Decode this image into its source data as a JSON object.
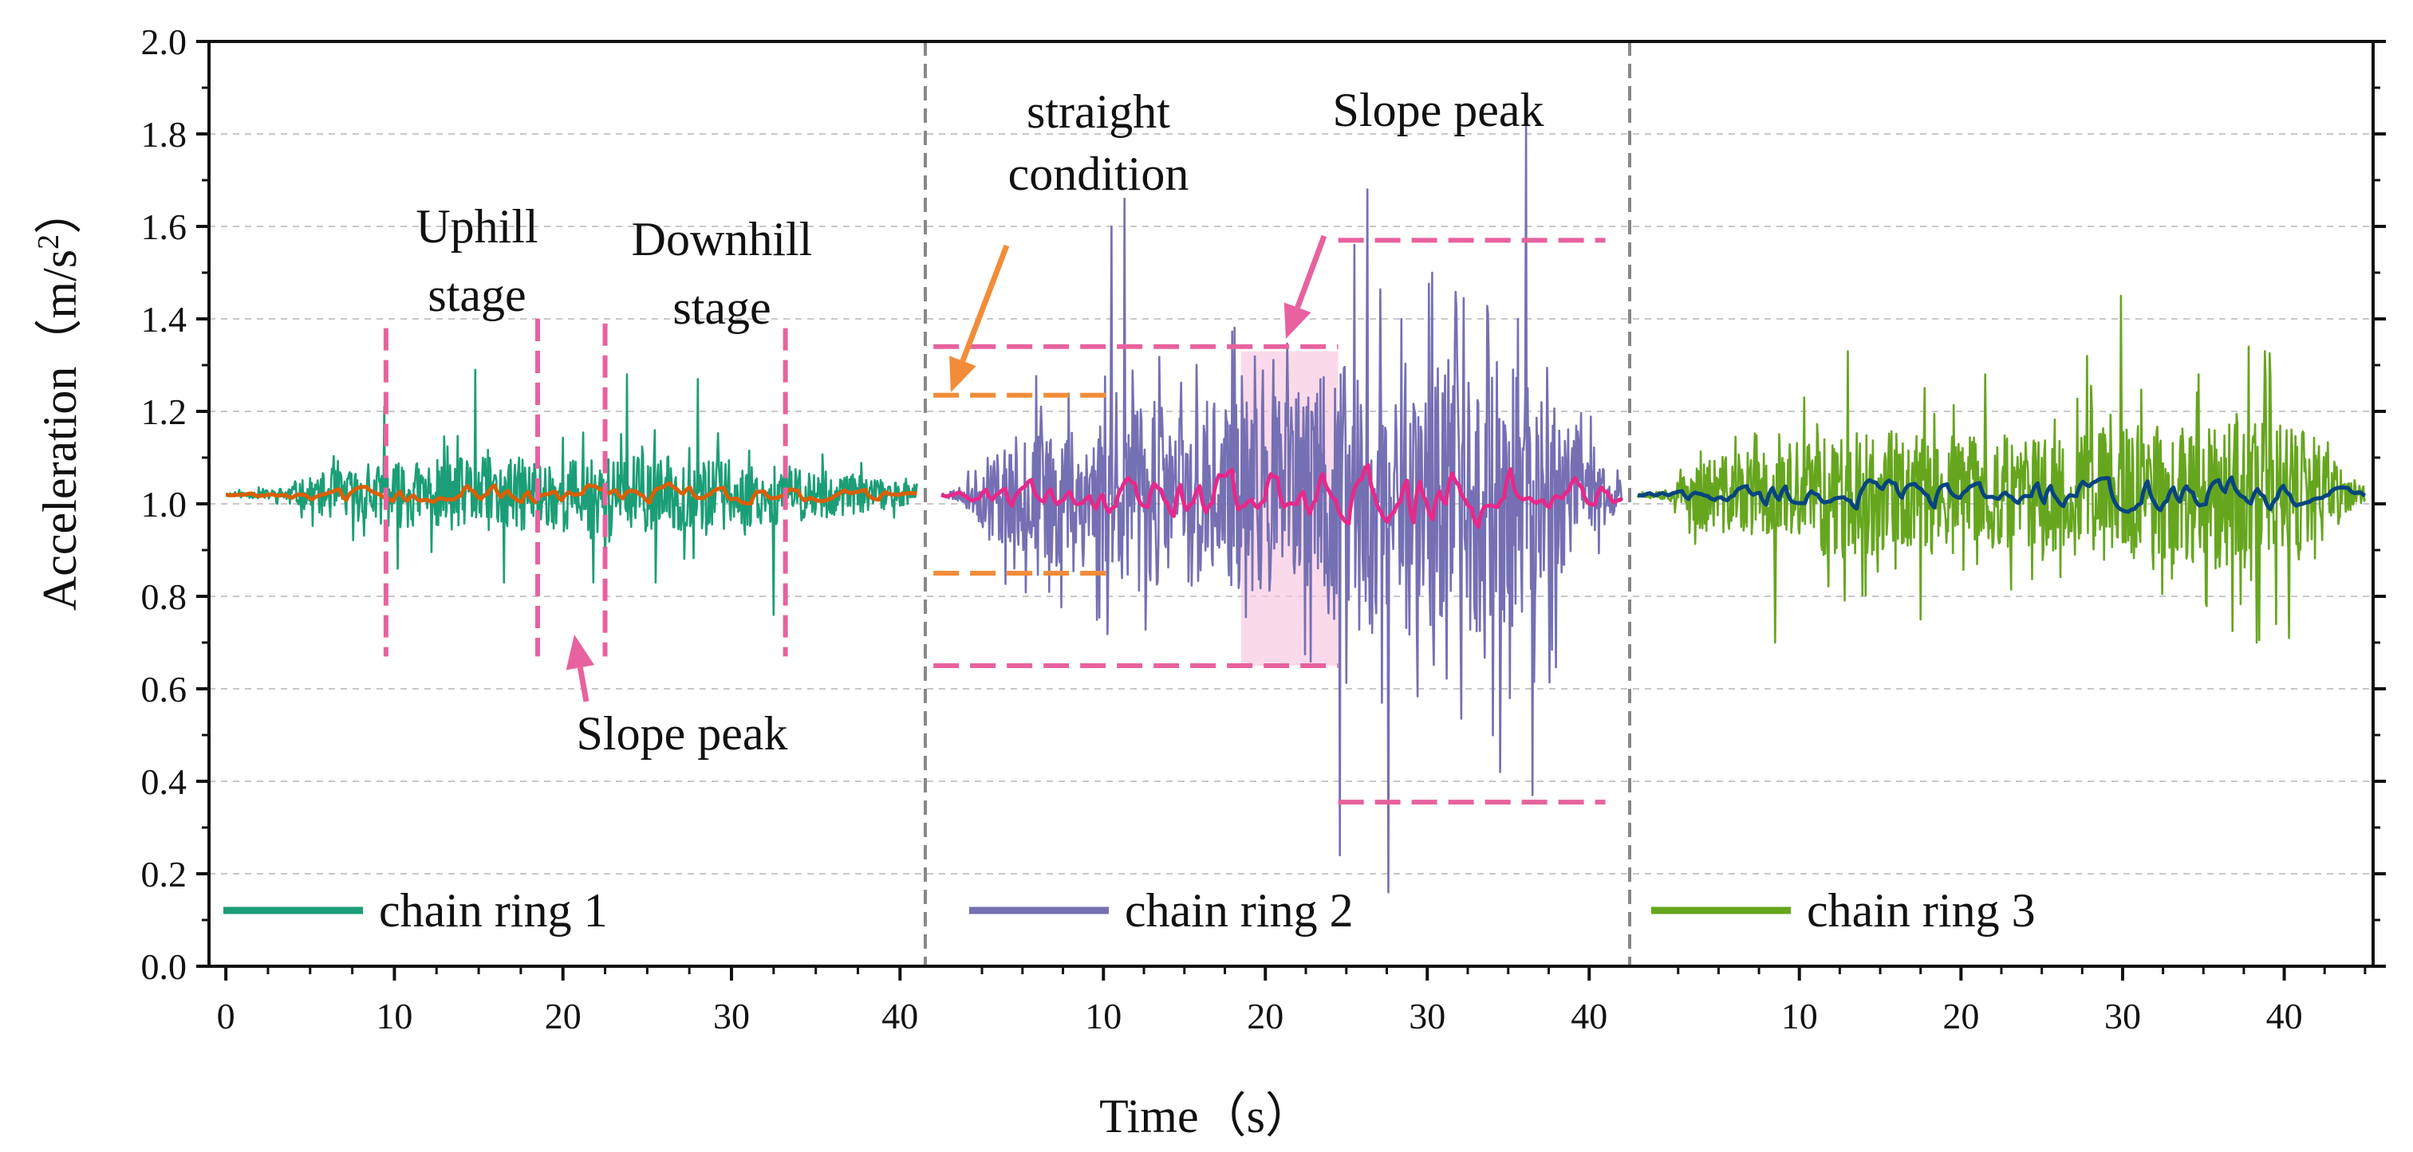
{
  "chart_data": {
    "type": "line",
    "xlabel": "Time（s）",
    "ylabel_main": "Acceleration（m/s",
    "ylabel_sup": "2",
    "ylabel_end": "）",
    "ylim": [
      0,
      2.0
    ],
    "yticks": [
      "0.0",
      "0.2",
      "0.4",
      "0.6",
      "0.8",
      "1.0",
      "1.2",
      "1.4",
      "1.6",
      "1.8",
      "2.0"
    ],
    "grid": "dashed horizontal",
    "panels": [
      {
        "name": "chain ring 1",
        "xlim": [
          -1,
          41.5
        ],
        "xticks": [
          "0",
          "10",
          "20",
          "30",
          "40"
        ],
        "raw_color": "#1B9E77",
        "smooth_color": "#D95F02",
        "baseline": 1.02,
        "duration": 41,
        "seed": 11,
        "envelope": [
          [
            0,
            0.004
          ],
          [
            3,
            0.012
          ],
          [
            6,
            0.05
          ],
          [
            10,
            0.07
          ],
          [
            14,
            0.08
          ],
          [
            20,
            0.08
          ],
          [
            27,
            0.085
          ],
          [
            34,
            0.06
          ],
          [
            38,
            0.04
          ],
          [
            41,
            0.02
          ]
        ],
        "smooth_amp": 0.015,
        "spikes": [
          [
            9.4,
            1.21
          ],
          [
            10.2,
            0.86
          ],
          [
            14.8,
            1.29
          ],
          [
            16.5,
            0.83
          ],
          [
            21.8,
            0.83
          ],
          [
            23.8,
            1.28
          ],
          [
            25.5,
            0.83
          ],
          [
            28,
            1.27
          ],
          [
            32.5,
            0.76
          ],
          [
            33.2,
            1.0
          ]
        ]
      },
      {
        "name": "chain ring 2",
        "xlim": [
          -1,
          42.5
        ],
        "xticks": [
          "10",
          "20",
          "30",
          "40"
        ],
        "raw_color": "#7570B3",
        "smooth_color": "#E7298A",
        "baseline": 1.02,
        "duration": 42,
        "seed": 23,
        "envelope": [
          [
            0,
            0.004
          ],
          [
            1.5,
            0.02
          ],
          [
            3,
            0.1
          ],
          [
            6,
            0.15
          ],
          [
            10,
            0.18
          ],
          [
            14,
            0.2
          ],
          [
            20,
            0.21
          ],
          [
            23,
            0.24
          ],
          [
            26,
            0.33
          ],
          [
            30,
            0.3
          ],
          [
            34,
            0.3
          ],
          [
            38,
            0.23
          ],
          [
            40,
            0.1
          ],
          [
            42,
            0.03
          ]
        ],
        "smooth_amp": 0.05,
        "spikes": [
          [
            11.3,
            1.66
          ],
          [
            10.5,
            1.6
          ],
          [
            24.6,
            0.24
          ],
          [
            25.5,
            1.56
          ],
          [
            26.3,
            1.68
          ],
          [
            27.2,
            0.57
          ],
          [
            27.6,
            0.16
          ],
          [
            28.4,
            1.4
          ],
          [
            30.3,
            1.5
          ],
          [
            33.8,
            1.3
          ],
          [
            34.5,
            0.42
          ],
          [
            35.6,
            1.4
          ],
          [
            36.1,
            1.83
          ],
          [
            36.5,
            0.37
          ],
          [
            35.1,
            0.58
          ]
        ]
      },
      {
        "name": "chain ring 3",
        "xlim": [
          -0.5,
          45.5
        ],
        "xticks": [
          "10",
          "20",
          "30",
          "40"
        ],
        "raw_color": "#66A61E",
        "smooth_color": "#08457E",
        "baseline": 1.02,
        "duration": 45,
        "seed": 37,
        "envelope": [
          [
            0,
            0.004
          ],
          [
            2,
            0.015
          ],
          [
            4,
            0.08
          ],
          [
            8,
            0.1
          ],
          [
            12,
            0.14
          ],
          [
            18,
            0.13
          ],
          [
            24,
            0.12
          ],
          [
            30,
            0.15
          ],
          [
            35,
            0.15
          ],
          [
            38,
            0.2
          ],
          [
            42,
            0.12
          ],
          [
            44,
            0.04
          ],
          [
            45,
            0.02
          ]
        ],
        "smooth_amp": 0.03,
        "spikes": [
          [
            13,
            1.33
          ],
          [
            17.5,
            0.75
          ],
          [
            21.5,
            1.28
          ],
          [
            27.8,
            1.32
          ],
          [
            29.9,
            1.45
          ],
          [
            34.7,
            1.28
          ],
          [
            37.8,
            1.34
          ],
          [
            38.3,
            0.7
          ],
          [
            38.8,
            1.33
          ],
          [
            39.5,
            0.74
          ],
          [
            40.3,
            0.71
          ],
          [
            8.5,
            0.7
          ]
        ]
      }
    ],
    "legend": [
      {
        "label": "chain ring 1",
        "color": "#1B9E77"
      },
      {
        "label": "chain ring 2",
        "color": "#7570B3"
      },
      {
        "label": "chain ring 3",
        "color": "#66A61E"
      }
    ],
    "annotations": {
      "uphill": [
        "Uphill",
        "stage"
      ],
      "downhill": [
        "Downhill",
        "stage"
      ],
      "slope_peak_1": "Slope peak",
      "straight": [
        "straight",
        "condition"
      ],
      "slope_peak_2": "Slope peak"
    },
    "marker_lines_panel1": [
      {
        "x": 9.5,
        "y1": 0.67,
        "y2": 1.38
      },
      {
        "x": 18.5,
        "y1": 0.67,
        "y2": 1.4
      },
      {
        "x": 22.5,
        "y1": 0.67,
        "y2": 1.39
      },
      {
        "x": 33.2,
        "y1": 0.67,
        "y2": 1.38
      }
    ],
    "boxes_panel2": [
      {
        "x1": -0.5,
        "x2": 10.5,
        "y": 1.235
      },
      {
        "x1": -0.5,
        "x2": 10.5,
        "y": 0.85
      },
      {
        "x1": -0.5,
        "x2": 24.5,
        "y": 1.34
      },
      {
        "x1": -0.5,
        "x2": 24.5,
        "y": 0.65
      },
      {
        "x1": 24.5,
        "x2": 41,
        "y": 1.57
      },
      {
        "x1": 24.5,
        "x2": 41,
        "y": 0.355
      }
    ],
    "shaded_region_panel2": {
      "x1": 18.5,
      "x2": 24.5,
      "y1": 0.65,
      "y2": 1.33
    },
    "colors": {
      "pink": "#E7629E",
      "orange": "#F28C38",
      "shade": "#F7C6DE",
      "divider": "#888888",
      "grid": "#C8C8C8"
    }
  }
}
